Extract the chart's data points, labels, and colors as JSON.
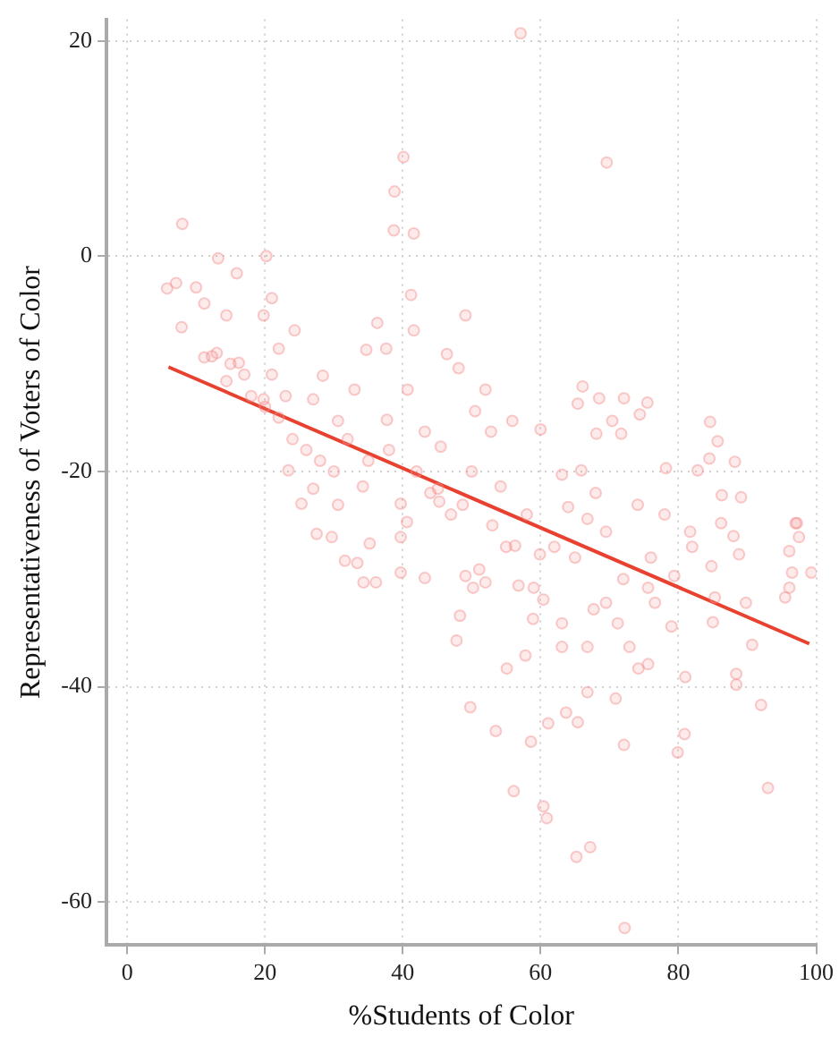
{
  "chart_data": {
    "type": "scatter",
    "xlabel": "%Students of Color",
    "ylabel": "Representativeness of Voters of Color",
    "xlim": [
      -3,
      100
    ],
    "xticks": [
      0,
      20,
      40,
      60,
      80,
      100
    ],
    "ylim": [
      -64,
      22
    ],
    "yticks": [
      20,
      0,
      -20,
      -40,
      -60
    ],
    "grid": true,
    "legend": false,
    "marker": "circle",
    "series": [
      {
        "color": "#f58c8c",
        "x": [
          57.1,
          40.1,
          69.6,
          38.8,
          8.0,
          38.7,
          41.6,
          13.2,
          20.2,
          5.8,
          7.1,
          15.9,
          21.0,
          41.2,
          10,
          49.1,
          36.3,
          7.9,
          41.6,
          34.7,
          37.6,
          46.4,
          12.3,
          48.1,
          66.1,
          68.5,
          72.1,
          75.5,
          65.4,
          74.4,
          52,
          40.7,
          33.0,
          28.4,
          84.6,
          85.7,
          88.2,
          78.2,
          82.8,
          84.5,
          86.3,
          89.1,
          97.2,
          70.4,
          71.7,
          68.1,
          60,
          55.9,
          50.5,
          52.8,
          45.5,
          43.2,
          37.7,
          30.6,
          27.0,
          19.8,
          14.4,
          11.2,
          16.2,
          22.0,
          24.3,
          11.2,
          14.4,
          19.8,
          27.0,
          23.4,
          30.6,
          34.2,
          39.7,
          45.1,
          48.7,
          54.2,
          63.1,
          65.9,
          64.0,
          66.8,
          74.1,
          72.2,
          65.2,
          67.2,
          60.9,
          60.4,
          56.1,
          93.0,
          79.9,
          80.9,
          58.6,
          53.5,
          72.1,
          61.1,
          63.7,
          65.4,
          49.8,
          92.0,
          66.8,
          70.9,
          88.4,
          88.4,
          81.0,
          72.9,
          74.2,
          75.6,
          63.1,
          66.8,
          57.8,
          55.1,
          47.8,
          48.3,
          58.9,
          63.1,
          71.2,
          79.0,
          90.7,
          76.6,
          67.7,
          69.5,
          60.4,
          56.8,
          59.0,
          50.2,
          49.1,
          52.0,
          85.3,
          89.8,
          95.5,
          96.1,
          99.3,
          96.5,
          79.4,
          84.8,
          88.8,
          96.1,
          97.5,
          97.0,
          86.2,
          81.7,
          69.5,
          59.9,
          56.3,
          51.1,
          43.2,
          39.7,
          36.1,
          34.3,
          31.6,
          33.4,
          29.7,
          27.5,
          35.2,
          39.7,
          40.6,
          25.3,
          45.3,
          75.6,
          13,
          15,
          17,
          18,
          20,
          22,
          24,
          26,
          23,
          21,
          28,
          30,
          32,
          35,
          38,
          42,
          44,
          47,
          50,
          53,
          55,
          58,
          62,
          65,
          68,
          72,
          76,
          78,
          82,
          85,
          88
        ],
        "values": [
          20.7,
          9.2,
          8.7,
          6,
          3,
          2.4,
          2.1,
          -0.2,
          0,
          -3,
          -2.5,
          -1.6,
          -3.9,
          -3.6,
          -2.9,
          -5.5,
          -6.2,
          -6.6,
          -6.9,
          -8.7,
          -8.6,
          -9.1,
          -9.3,
          -10.4,
          -12.1,
          -13.2,
          -13.2,
          -13.6,
          -13.7,
          -14.7,
          -12.4,
          -12.4,
          -12.4,
          -11.1,
          -15.4,
          -17.2,
          -19.1,
          -19.7,
          -19.9,
          -18.8,
          -22.2,
          -22.4,
          -24.8,
          -15.3,
          -16.5,
          -16.5,
          -16.1,
          -15.3,
          -14.4,
          -16.3,
          -17.7,
          -16.3,
          -15.2,
          -15.3,
          -13.3,
          -13.3,
          -11.6,
          -9.4,
          -9.9,
          -8.6,
          -6.9,
          -4.4,
          -5.5,
          -5.5,
          -21.6,
          -19.9,
          -23.1,
          -21.4,
          -23.0,
          -21.6,
          -23.1,
          -21.4,
          -20.3,
          -19.9,
          -23.3,
          -24.4,
          -23.1,
          -62.4,
          -55.8,
          -54.9,
          -52.2,
          -51.1,
          -49.7,
          -49.4,
          -46.1,
          -44.4,
          -45.1,
          -44.1,
          -45.4,
          -43.4,
          -42.4,
          -43.3,
          -41.9,
          -41.7,
          -40.5,
          -41.1,
          -38.8,
          -39.8,
          -39.1,
          -36.3,
          -38.3,
          -37.9,
          -36.3,
          -36.3,
          -37.1,
          -38.3,
          -35.7,
          -33.4,
          -33.7,
          -34.1,
          -34.1,
          -34.4,
          -36.1,
          -32.2,
          -32.8,
          -32.2,
          -31.9,
          -30.6,
          -30.8,
          -30.8,
          -29.7,
          -30.3,
          -31.7,
          -32.2,
          -31.7,
          -30.8,
          -29.4,
          -29.4,
          -29.7,
          -28.8,
          -27.7,
          -27.4,
          -26.1,
          -24.8,
          -24.8,
          -25.6,
          -25.6,
          -27.7,
          -26.9,
          -29.1,
          -29.9,
          -29.4,
          -30.3,
          -30.3,
          -28.3,
          -28.5,
          -26.1,
          -25.8,
          -26.7,
          -26.1,
          -24.7,
          -23,
          -22.8,
          -30.8,
          -9,
          -10,
          -11,
          -13,
          -14,
          -15,
          -17,
          -18,
          -13,
          -11,
          -19,
          -20,
          -17,
          -19,
          -18,
          -20,
          -22,
          -24,
          -20,
          -25,
          -27,
          -24,
          -27,
          -28,
          -22,
          -30,
          -28,
          -24,
          -27,
          -34,
          -26
        ]
      },
      {
        "type": "line",
        "color": "#e8412f",
        "marker": "none",
        "x": [
          6,
          99
        ],
        "values": [
          -10.3,
          -36
        ]
      }
    ]
  }
}
